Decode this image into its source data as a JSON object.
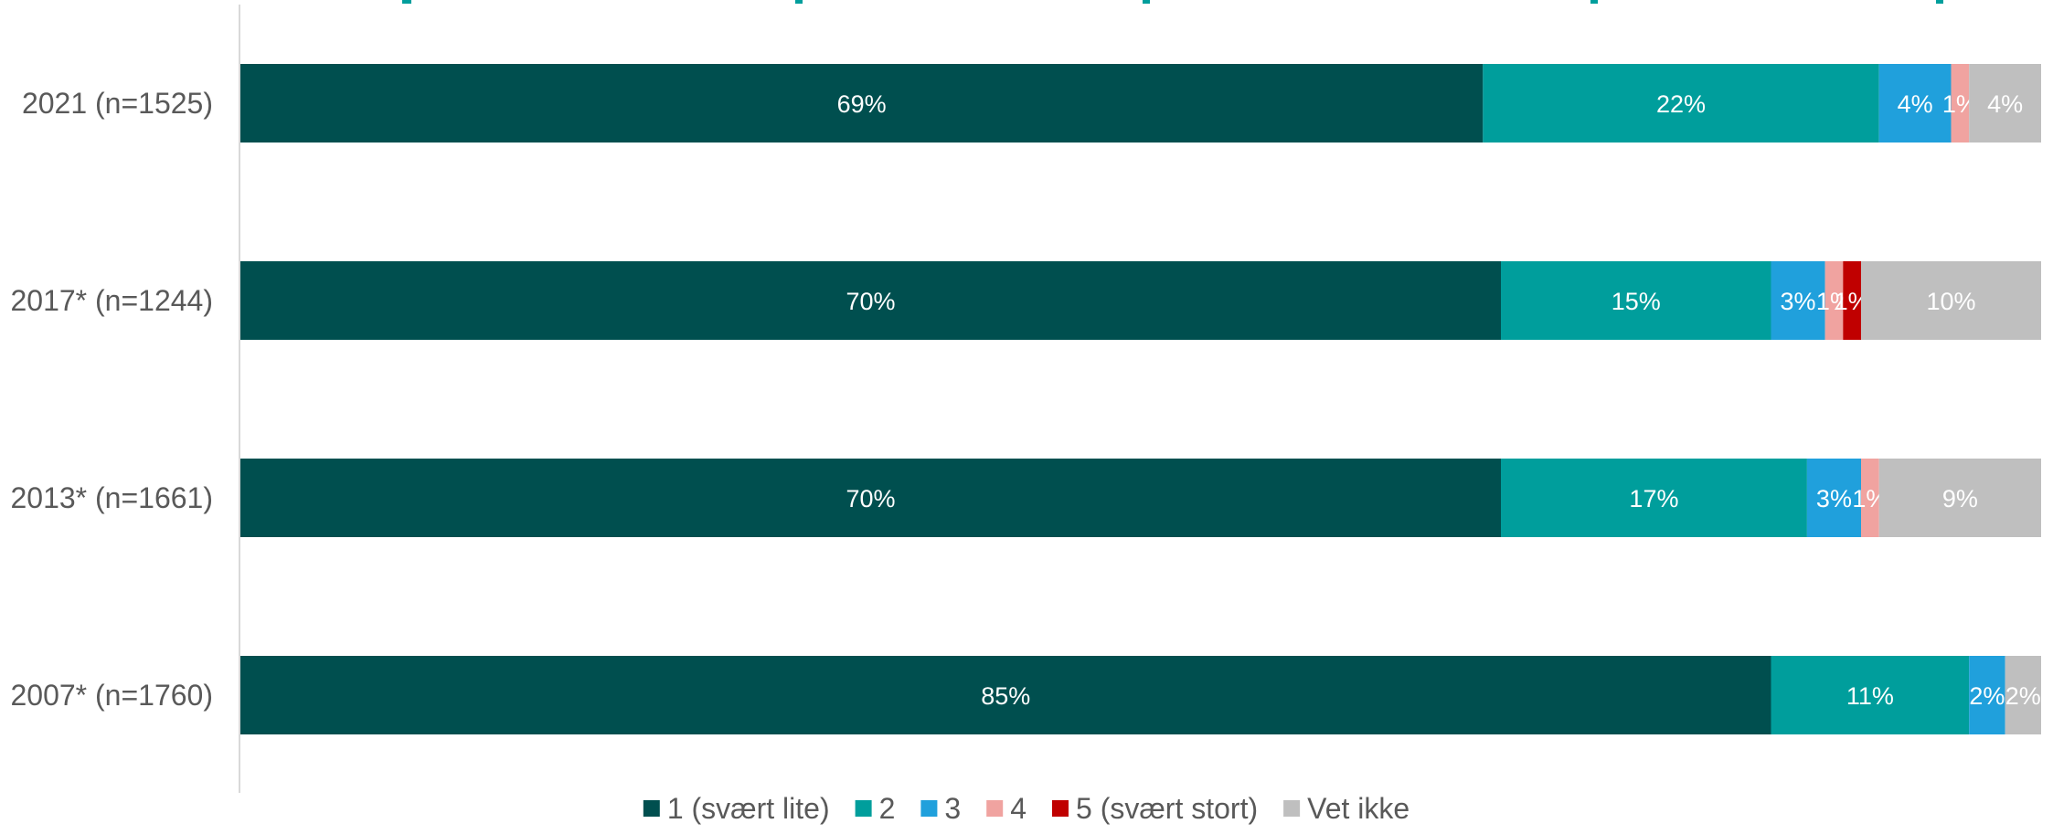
{
  "chart_data": {
    "type": "bar",
    "orientation": "horizontal",
    "stacked": true,
    "title": "",
    "xlabel": "",
    "ylabel": "",
    "xlim": [
      0,
      100
    ],
    "categories": [
      "2021 (n=1525)",
      "2017* (n=1244)",
      "2013* (n=1661)",
      "2007* (n=1760)"
    ],
    "series": [
      {
        "name": "1 (svært lite)",
        "color": "#004f4f",
        "values": [
          69,
          70,
          70,
          85
        ],
        "labels": [
          "69%",
          "70%",
          "70%",
          "85%"
        ]
      },
      {
        "name": "2",
        "color": "#009e9c",
        "values": [
          22,
          15,
          17,
          11
        ],
        "labels": [
          "22%",
          "15%",
          "17%",
          "11%"
        ]
      },
      {
        "name": "3",
        "color": "#20a0dc",
        "values": [
          4,
          3,
          3,
          2
        ],
        "labels": [
          "4%",
          "3%",
          "3%",
          "2%"
        ]
      },
      {
        "name": "4",
        "color": "#f0a3a0",
        "values": [
          1,
          1,
          1,
          0
        ],
        "labels": [
          "1%",
          "1%",
          "1%",
          ""
        ]
      },
      {
        "name": "5 (svært stort)",
        "color": "#c00000",
        "values": [
          0,
          1,
          0,
          0
        ],
        "labels": [
          "",
          "1%",
          "",
          ""
        ]
      },
      {
        "name": "Vet ikke",
        "color": "#bfbfbf",
        "values": [
          4,
          10,
          9,
          2
        ],
        "labels": [
          "4%",
          "10%",
          "9%",
          "2%"
        ]
      }
    ],
    "grid": false,
    "legend_position": "bottom"
  }
}
